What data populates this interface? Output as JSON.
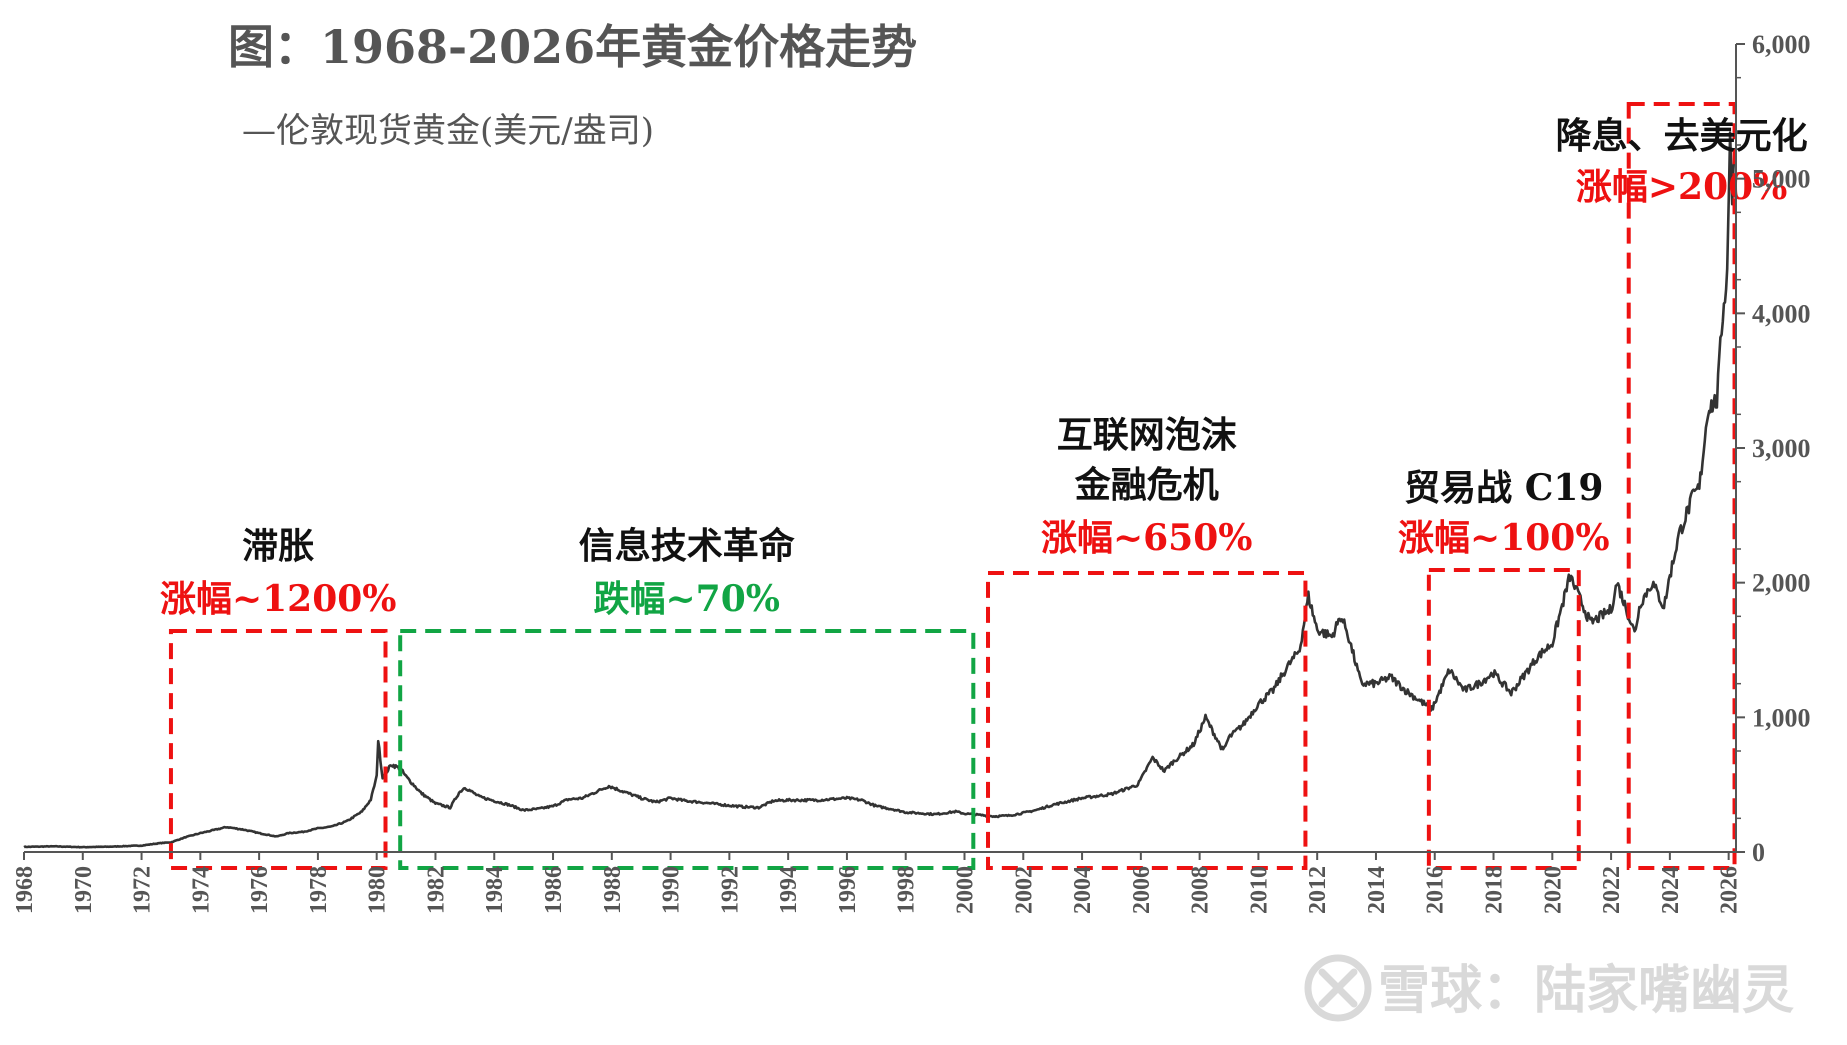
{
  "title": "图：1968-2026年黄金价格走势",
  "legend_label": "—伦敦现货黄金(美元/盎司)",
  "watermark": "雪球：陆家嘴幽灵",
  "colors": {
    "line": "#333333",
    "red": "#ee1111",
    "green": "#11a544",
    "axis": "#555555",
    "text": "#111111"
  },
  "chart_data": {
    "type": "line",
    "title": "图：1968-2026年黄金价格走势",
    "series": [
      {
        "name": "伦敦现货黄金(美元/盎司)",
        "points": [
          [
            1968.0,
            38
          ],
          [
            1969.0,
            42
          ],
          [
            1970.0,
            36
          ],
          [
            1971.0,
            40
          ],
          [
            1972.0,
            48
          ],
          [
            1972.6,
            65
          ],
          [
            1973.0,
            72
          ],
          [
            1973.5,
            110
          ],
          [
            1974.0,
            140
          ],
          [
            1974.5,
            165
          ],
          [
            1974.9,
            185
          ],
          [
            1975.5,
            165
          ],
          [
            1976.0,
            140
          ],
          [
            1976.6,
            115
          ],
          [
            1977.0,
            140
          ],
          [
            1977.5,
            150
          ],
          [
            1978.0,
            175
          ],
          [
            1978.5,
            190
          ],
          [
            1979.0,
            230
          ],
          [
            1979.5,
            300
          ],
          [
            1979.8,
            390
          ],
          [
            1980.0,
            560
          ],
          [
            1980.05,
            830
          ],
          [
            1980.2,
            550
          ],
          [
            1980.5,
            650
          ],
          [
            1980.8,
            620
          ],
          [
            1981.0,
            560
          ],
          [
            1981.5,
            440
          ],
          [
            1982.0,
            360
          ],
          [
            1982.5,
            330
          ],
          [
            1982.8,
            440
          ],
          [
            1983.0,
            480
          ],
          [
            1983.5,
            410
          ],
          [
            1984.0,
            380
          ],
          [
            1984.5,
            350
          ],
          [
            1985.0,
            310
          ],
          [
            1985.5,
            320
          ],
          [
            1986.0,
            340
          ],
          [
            1986.5,
            390
          ],
          [
            1987.0,
            400
          ],
          [
            1987.5,
            450
          ],
          [
            1987.9,
            490
          ],
          [
            1988.5,
            440
          ],
          [
            1989.0,
            400
          ],
          [
            1989.5,
            370
          ],
          [
            1990.0,
            400
          ],
          [
            1990.5,
            380
          ],
          [
            1991.0,
            370
          ],
          [
            1992.0,
            345
          ],
          [
            1992.5,
            335
          ],
          [
            1993.0,
            330
          ],
          [
            1993.5,
            380
          ],
          [
            1994.0,
            385
          ],
          [
            1995.0,
            385
          ],
          [
            1996.0,
            400
          ],
          [
            1996.5,
            385
          ],
          [
            1997.0,
            340
          ],
          [
            1997.5,
            320
          ],
          [
            1998.0,
            295
          ],
          [
            1999.0,
            280
          ],
          [
            1999.7,
            300
          ],
          [
            2000.0,
            285
          ],
          [
            2000.5,
            275
          ],
          [
            2001.0,
            265
          ],
          [
            2001.5,
            270
          ],
          [
            2002.0,
            290
          ],
          [
            2002.5,
            315
          ],
          [
            2003.0,
            350
          ],
          [
            2004.0,
            400
          ],
          [
            2005.0,
            430
          ],
          [
            2005.9,
            500
          ],
          [
            2006.4,
            700
          ],
          [
            2006.8,
            600
          ],
          [
            2007.0,
            650
          ],
          [
            2007.8,
            800
          ],
          [
            2008.2,
            1000
          ],
          [
            2008.8,
            750
          ],
          [
            2009.0,
            850
          ],
          [
            2009.5,
            950
          ],
          [
            2010.0,
            1100
          ],
          [
            2010.5,
            1200
          ],
          [
            2011.0,
            1380
          ],
          [
            2011.4,
            1500
          ],
          [
            2011.7,
            1900
          ],
          [
            2012.0,
            1650
          ],
          [
            2012.5,
            1600
          ],
          [
            2012.8,
            1750
          ],
          [
            2013.0,
            1650
          ],
          [
            2013.5,
            1250
          ],
          [
            2014.0,
            1250
          ],
          [
            2014.5,
            1300
          ],
          [
            2015.0,
            1200
          ],
          [
            2015.9,
            1060
          ],
          [
            2016.5,
            1350
          ],
          [
            2017.0,
            1200
          ],
          [
            2017.5,
            1250
          ],
          [
            2018.0,
            1330
          ],
          [
            2018.6,
            1180
          ],
          [
            2019.0,
            1300
          ],
          [
            2019.5,
            1450
          ],
          [
            2020.0,
            1550
          ],
          [
            2020.6,
            2050
          ],
          [
            2021.0,
            1850
          ],
          [
            2021.3,
            1700
          ],
          [
            2022.0,
            1800
          ],
          [
            2022.2,
            2000
          ],
          [
            2022.8,
            1630
          ],
          [
            2023.0,
            1850
          ],
          [
            2023.4,
            2000
          ],
          [
            2023.8,
            1820
          ],
          [
            2024.0,
            2050
          ],
          [
            2024.3,
            2350
          ],
          [
            2024.8,
            2650
          ],
          [
            2025.0,
            2700
          ],
          [
            2025.3,
            3300
          ],
          [
            2025.6,
            3350
          ],
          [
            2025.8,
            4000
          ],
          [
            2025.95,
            4300
          ],
          [
            2026.05,
            5400
          ],
          [
            2026.12,
            4800
          ],
          [
            2026.2,
            5200
          ]
        ]
      }
    ],
    "x_ticks": [
      "1968",
      "1970",
      "1972",
      "1974",
      "1976",
      "1978",
      "1980",
      "1982",
      "1984",
      "1986",
      "1988",
      "1990",
      "1992",
      "1994",
      "1996",
      "1998",
      "2000",
      "2002",
      "2004",
      "2006",
      "2008",
      "2010",
      "2012",
      "2014",
      "2016",
      "2018",
      "2020",
      "2022",
      "2024",
      "2026"
    ],
    "y_ticks": [
      "0",
      "1,000",
      "2,000",
      "3,000",
      "4,000",
      "5,000",
      "6,000"
    ],
    "xlim": [
      1968,
      2026.25
    ],
    "ylim": [
      0,
      6000
    ],
    "y_axis_side": "right",
    "annotations": [
      {
        "id": "stagflation",
        "period": [
          1973.0,
          1980.3
        ],
        "color": "red",
        "label_lines": [
          "滞胀"
        ],
        "change": "涨幅~1200%"
      },
      {
        "id": "it-revolution",
        "period": [
          1980.8,
          2000.3
        ],
        "color": "green",
        "label_lines": [
          "信息技术革命"
        ],
        "change": "跌幅~70%"
      },
      {
        "id": "dotcom-gfc",
        "period": [
          2000.8,
          2011.6
        ],
        "color": "red",
        "label_lines": [
          "互联网泡沫",
          "金融危机"
        ],
        "change": "涨幅~650%"
      },
      {
        "id": "trade-war-c19",
        "period": [
          2015.8,
          2020.9
        ],
        "color": "red",
        "label_lines": [
          "贸易战 C19"
        ],
        "change": "涨幅~100%"
      },
      {
        "id": "rate-cuts-dedollarization",
        "period": [
          2022.6,
          2026.2
        ],
        "color": "red",
        "label_lines": [
          "降息、去美元化"
        ],
        "change": "涨幅>200%"
      }
    ]
  }
}
